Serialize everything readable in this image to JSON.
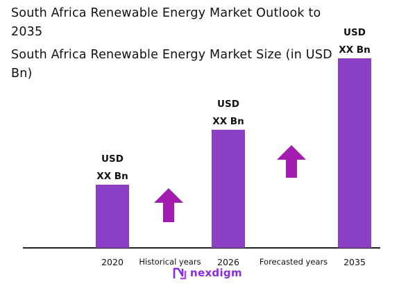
{
  "title": "South Africa Renewable Energy Market Outlook to 2035",
  "subtitle": "South Africa Renewable Energy Market Size (in USD Bn)",
  "colors": {
    "bar": "#8a3fc4",
    "arrow": "#a21caf",
    "axis": "#222222",
    "brand": "#8a2be2"
  },
  "chart_data": {
    "type": "bar",
    "categories": [
      "2020",
      "2026",
      "2035"
    ],
    "values": [
      2.3,
      4.3,
      6.9
    ],
    "value_labels": [
      [
        "USD",
        "XX Bn"
      ],
      [
        "USD",
        "XX Bn"
      ],
      [
        "USD",
        "XX Bn"
      ]
    ],
    "ylim": [
      0,
      7.0
    ],
    "grid": false,
    "annotations": [
      "Historical years",
      "Forecasted years"
    ],
    "arrows": [
      "up-arrow",
      "up-arrow"
    ]
  },
  "brand": {
    "name": "nexdigm",
    "icon": "nexdigm-logo-icon"
  }
}
